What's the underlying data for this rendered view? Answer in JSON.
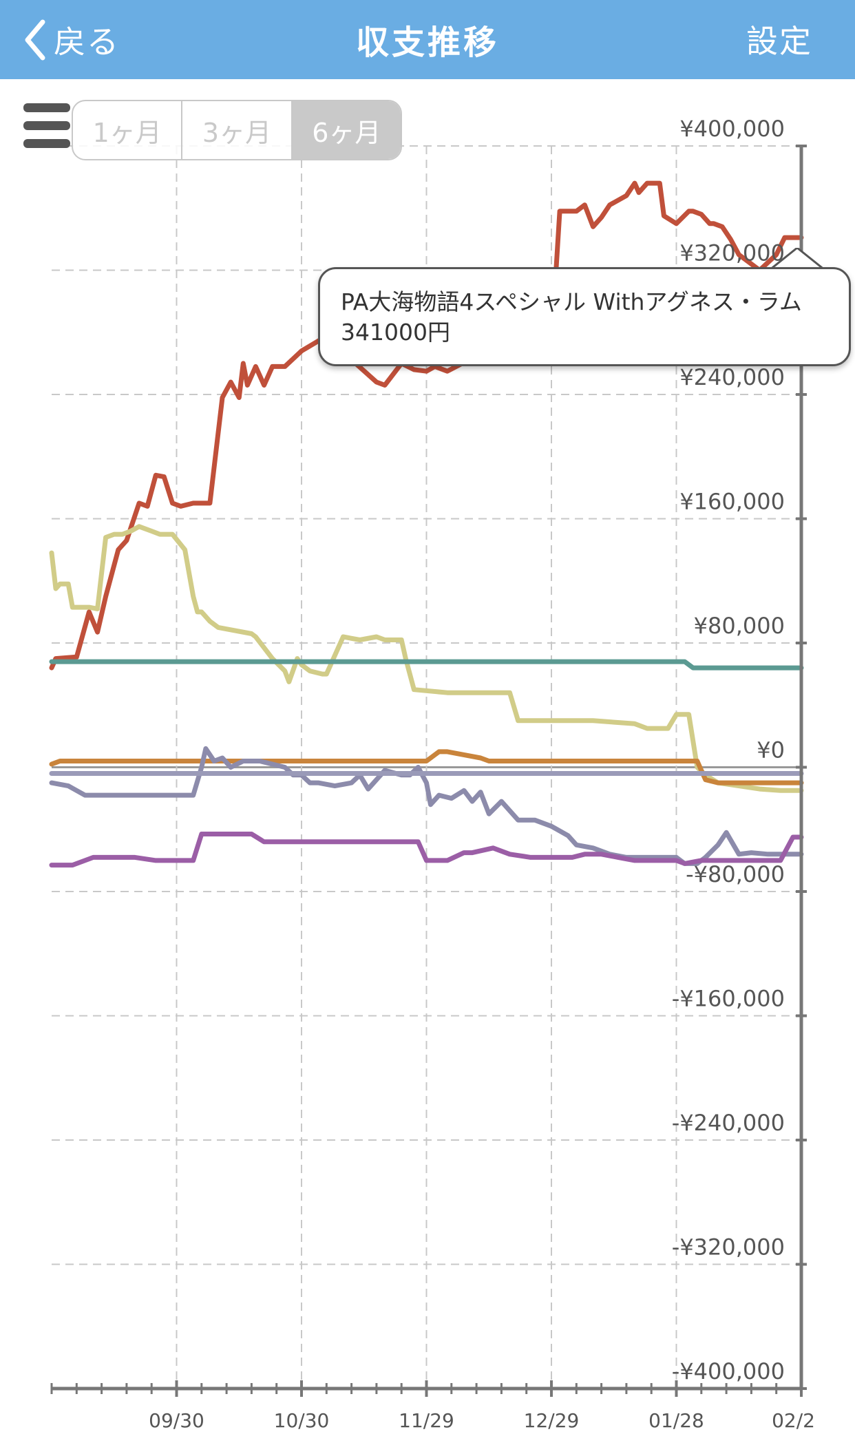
{
  "nav": {
    "back_label": "戻る",
    "title": "収支推移",
    "settings_label": "設定",
    "bg_color": "#6aade3"
  },
  "range_selector": {
    "options": [
      "1ヶ月",
      "3ヶ月",
      "6ヶ月"
    ],
    "selected": "6ヶ月"
  },
  "tooltip": {
    "series_name": "PA大海物語4スペシャル Withアグネス・ラム",
    "value_text": "341000円"
  },
  "chart_data": {
    "type": "line",
    "title": "",
    "xlabel": "",
    "ylabel": "",
    "x_tick_labels": [
      "09/30",
      "10/30",
      "11/29",
      "12/29",
      "01/28",
      "02/2"
    ],
    "x_tick_days": [
      30,
      60,
      90,
      120,
      150,
      180
    ],
    "x_range_days": [
      0,
      180
    ],
    "y_range": [
      -400000,
      400000
    ],
    "y_ticks": [
      400000,
      320000,
      240000,
      160000,
      80000,
      0,
      -80000,
      -160000,
      -240000,
      -320000,
      -400000
    ],
    "y_tick_labels": [
      "¥400,000",
      "¥320,000",
      "¥240,000",
      "¥160,000",
      "¥80,000",
      "¥0",
      "-¥80,000",
      "-¥160,000",
      "-¥240,000",
      "-¥320,000",
      "-¥400,000"
    ],
    "y_axis_position": "right",
    "grid": true,
    "series": [
      {
        "color": "#c0503a",
        "x": [
          0,
          1,
          6,
          9,
          11,
          13,
          16,
          18,
          21,
          23,
          25,
          27,
          29,
          31,
          34,
          38,
          41,
          43,
          45,
          46,
          47,
          49,
          51,
          53,
          56,
          60,
          65,
          69,
          73,
          78,
          80,
          84,
          87,
          90,
          92,
          95,
          100,
          105,
          110,
          115,
          120,
          122,
          126,
          128,
          130,
          132,
          134,
          138,
          140,
          141,
          143,
          146,
          147,
          150,
          153,
          154,
          156,
          158,
          159,
          161,
          163,
          165,
          170,
          174,
          176,
          180
        ],
        "y": [
          64000,
          70000,
          71000,
          100000,
          87000,
          110000,
          140000,
          146000,
          170000,
          168000,
          188000,
          187000,
          170000,
          168000,
          170000,
          170000,
          238000,
          248000,
          238000,
          260000,
          246000,
          258000,
          246000,
          258000,
          258000,
          268000,
          276000,
          280000,
          260000,
          248000,
          246000,
          260000,
          256000,
          255000,
          258000,
          255000,
          262000,
          268000,
          272000,
          268000,
          272000,
          358000,
          358000,
          362000,
          348000,
          354000,
          362000,
          368000,
          376000,
          370000,
          376000,
          376000,
          355000,
          350000,
          358000,
          358000,
          356000,
          350000,
          350000,
          348000,
          340000,
          330000,
          320000,
          330000,
          341000,
          341000
        ]
      },
      {
        "color": "#d1cc88",
        "x": [
          0,
          1,
          2,
          4,
          5,
          9,
          11,
          13,
          15,
          17,
          19,
          21,
          24,
          26,
          27,
          29,
          32,
          34,
          35,
          36,
          38,
          40,
          48,
          49,
          53,
          56,
          57,
          59,
          60,
          62,
          65,
          66,
          70,
          74,
          78,
          80,
          84,
          85,
          87,
          95,
          100,
          110,
          112,
          115,
          120,
          125,
          130,
          140,
          143,
          148,
          150,
          153,
          155,
          157,
          160,
          165,
          170,
          175,
          180
        ],
        "y": [
          138000,
          115000,
          118000,
          118000,
          103000,
          103000,
          102000,
          148000,
          150000,
          150000,
          152000,
          155000,
          152000,
          150000,
          150000,
          150000,
          140000,
          110000,
          100000,
          100000,
          94000,
          90000,
          86000,
          84000,
          70000,
          62000,
          55000,
          70000,
          66000,
          62000,
          60000,
          60000,
          84000,
          82000,
          84000,
          82000,
          82000,
          70000,
          50000,
          48000,
          48000,
          48000,
          30000,
          30000,
          30000,
          30000,
          30000,
          28000,
          25000,
          25000,
          34000,
          34000,
          0,
          -5000,
          -10000,
          -12000,
          -14000,
          -15000,
          -15000
        ]
      },
      {
        "color": "#5b9a92",
        "x": [
          0,
          20,
          40,
          60,
          80,
          100,
          120,
          140,
          152,
          154,
          158,
          180
        ],
        "y": [
          68000,
          68000,
          68000,
          68000,
          68000,
          68000,
          68000,
          68000,
          68000,
          64000,
          64000,
          64000
        ]
      },
      {
        "color": "#c9843b",
        "x": [
          0,
          2,
          20,
          40,
          60,
          80,
          90,
          93,
          95,
          103,
          105,
          110,
          120,
          140,
          155,
          157,
          160,
          170,
          180
        ],
        "y": [
          2000,
          4000,
          4000,
          4000,
          4000,
          4000,
          4000,
          10000,
          10000,
          6000,
          4000,
          4000,
          4000,
          4000,
          4000,
          -8000,
          -10000,
          -10000,
          -10000
        ]
      },
      {
        "color": "#8c8bab",
        "x": [
          0,
          4,
          8,
          12,
          18,
          24,
          30,
          34,
          36,
          37,
          39,
          41,
          43,
          46,
          50,
          56,
          58,
          60,
          62,
          64,
          68,
          72,
          74,
          76,
          78,
          80,
          84,
          86,
          88,
          90,
          91,
          93,
          96,
          99,
          101,
          103,
          105,
          108,
          112,
          116,
          120,
          124,
          126,
          130,
          134,
          138,
          142,
          146,
          150,
          152,
          155,
          157,
          160,
          162,
          165,
          168,
          172,
          176,
          180
        ],
        "y": [
          -10000,
          -12000,
          -18000,
          -18000,
          -18000,
          -18000,
          -18000,
          -18000,
          0,
          12000,
          4000,
          6000,
          0,
          4000,
          4000,
          0,
          -5000,
          -5000,
          -10000,
          -10000,
          -12000,
          -10000,
          -5000,
          -14000,
          -8000,
          -2000,
          -5000,
          -5000,
          0,
          -10000,
          -24000,
          -18000,
          -20000,
          -15000,
          -22000,
          -16000,
          -30000,
          -22000,
          -34000,
          -34000,
          -38000,
          -44000,
          -50000,
          -52000,
          -56000,
          -58000,
          -58000,
          -58000,
          -58000,
          -62000,
          -62000,
          -58000,
          -50000,
          -42000,
          -56000,
          -55000,
          -56000,
          -56000,
          -56000
        ]
      },
      {
        "color": "#9b5ea6",
        "x": [
          0,
          5,
          10,
          20,
          25,
          34,
          36,
          40,
          48,
          51,
          60,
          70,
          80,
          88,
          90,
          95,
          99,
          101,
          106,
          110,
          115,
          120,
          125,
          128,
          132,
          136,
          140,
          150,
          152,
          156,
          165,
          175,
          178,
          180
        ],
        "y": [
          -63000,
          -63000,
          -58000,
          -58000,
          -60000,
          -60000,
          -43000,
          -43000,
          -43000,
          -48000,
          -48000,
          -48000,
          -48000,
          -48000,
          -60000,
          -60000,
          -55000,
          -55000,
          -52000,
          -56000,
          -58000,
          -58000,
          -58000,
          -56000,
          -56000,
          -58000,
          -60000,
          -60000,
          -62000,
          -60000,
          -60000,
          -60000,
          -45000,
          -45000
        ]
      },
      {
        "color": "#9a9ab8",
        "x": [
          0,
          180
        ],
        "y": [
          -4000,
          -4000
        ]
      }
    ]
  }
}
